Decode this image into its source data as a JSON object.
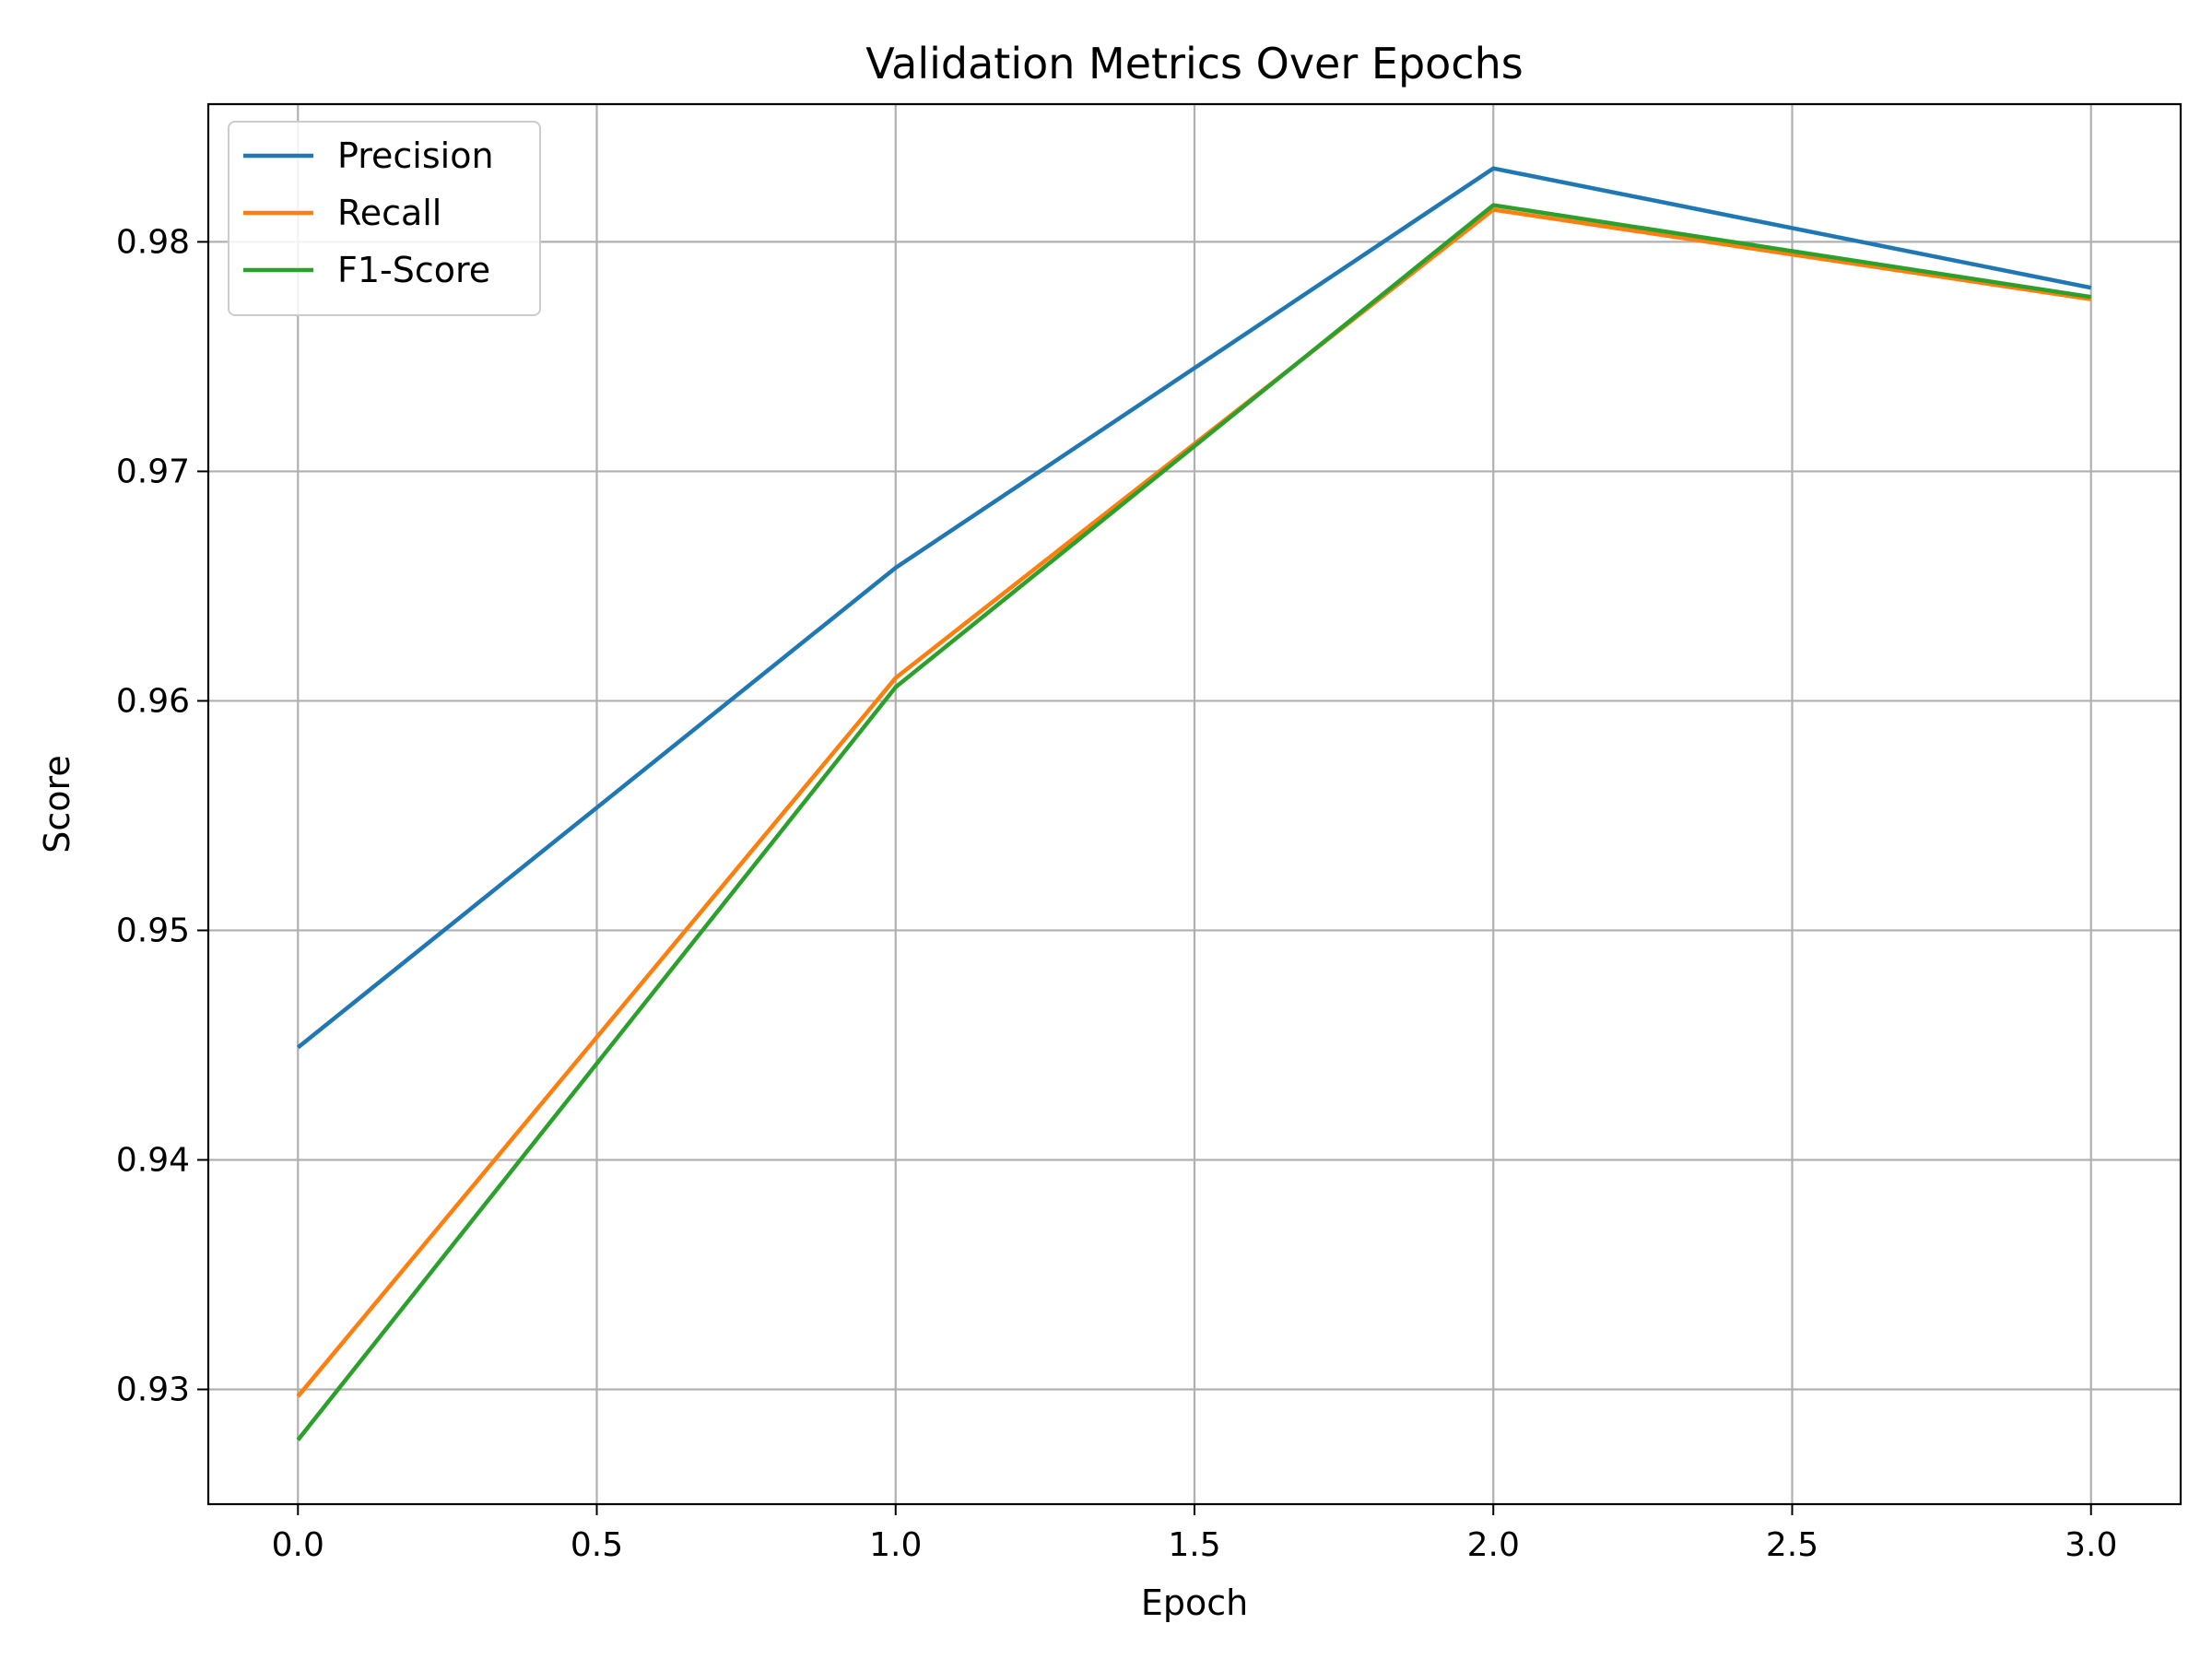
{
  "chart_data": {
    "type": "line",
    "title": "Validation Metrics Over Epochs",
    "xlabel": "Epoch",
    "ylabel": "Score",
    "x": [
      0,
      1,
      2,
      3
    ],
    "xlim": [
      -0.15,
      3.15
    ],
    "ylim": [
      0.925,
      0.986
    ],
    "xticks": [
      0.0,
      0.5,
      1.0,
      1.5,
      2.0,
      2.5,
      3.0
    ],
    "xtick_labels": [
      "0.0",
      "0.5",
      "1.0",
      "1.5",
      "2.0",
      "2.5",
      "3.0"
    ],
    "yticks": [
      0.93,
      0.94,
      0.95,
      0.96,
      0.97,
      0.98
    ],
    "ytick_labels": [
      "0.93",
      "0.94",
      "0.95",
      "0.96",
      "0.97",
      "0.98"
    ],
    "grid": true,
    "legend_position": "top-left",
    "series": [
      {
        "name": "Precision",
        "color": "#1f77b4",
        "values": [
          0.9449,
          0.9658,
          0.9832,
          0.978
        ]
      },
      {
        "name": "Recall",
        "color": "#ff7f0e",
        "values": [
          0.9297,
          0.961,
          0.9814,
          0.9775
        ]
      },
      {
        "name": "F1-Score",
        "color": "#2ca02c",
        "values": [
          0.9278,
          0.9606,
          0.9816,
          0.9776
        ]
      }
    ]
  }
}
